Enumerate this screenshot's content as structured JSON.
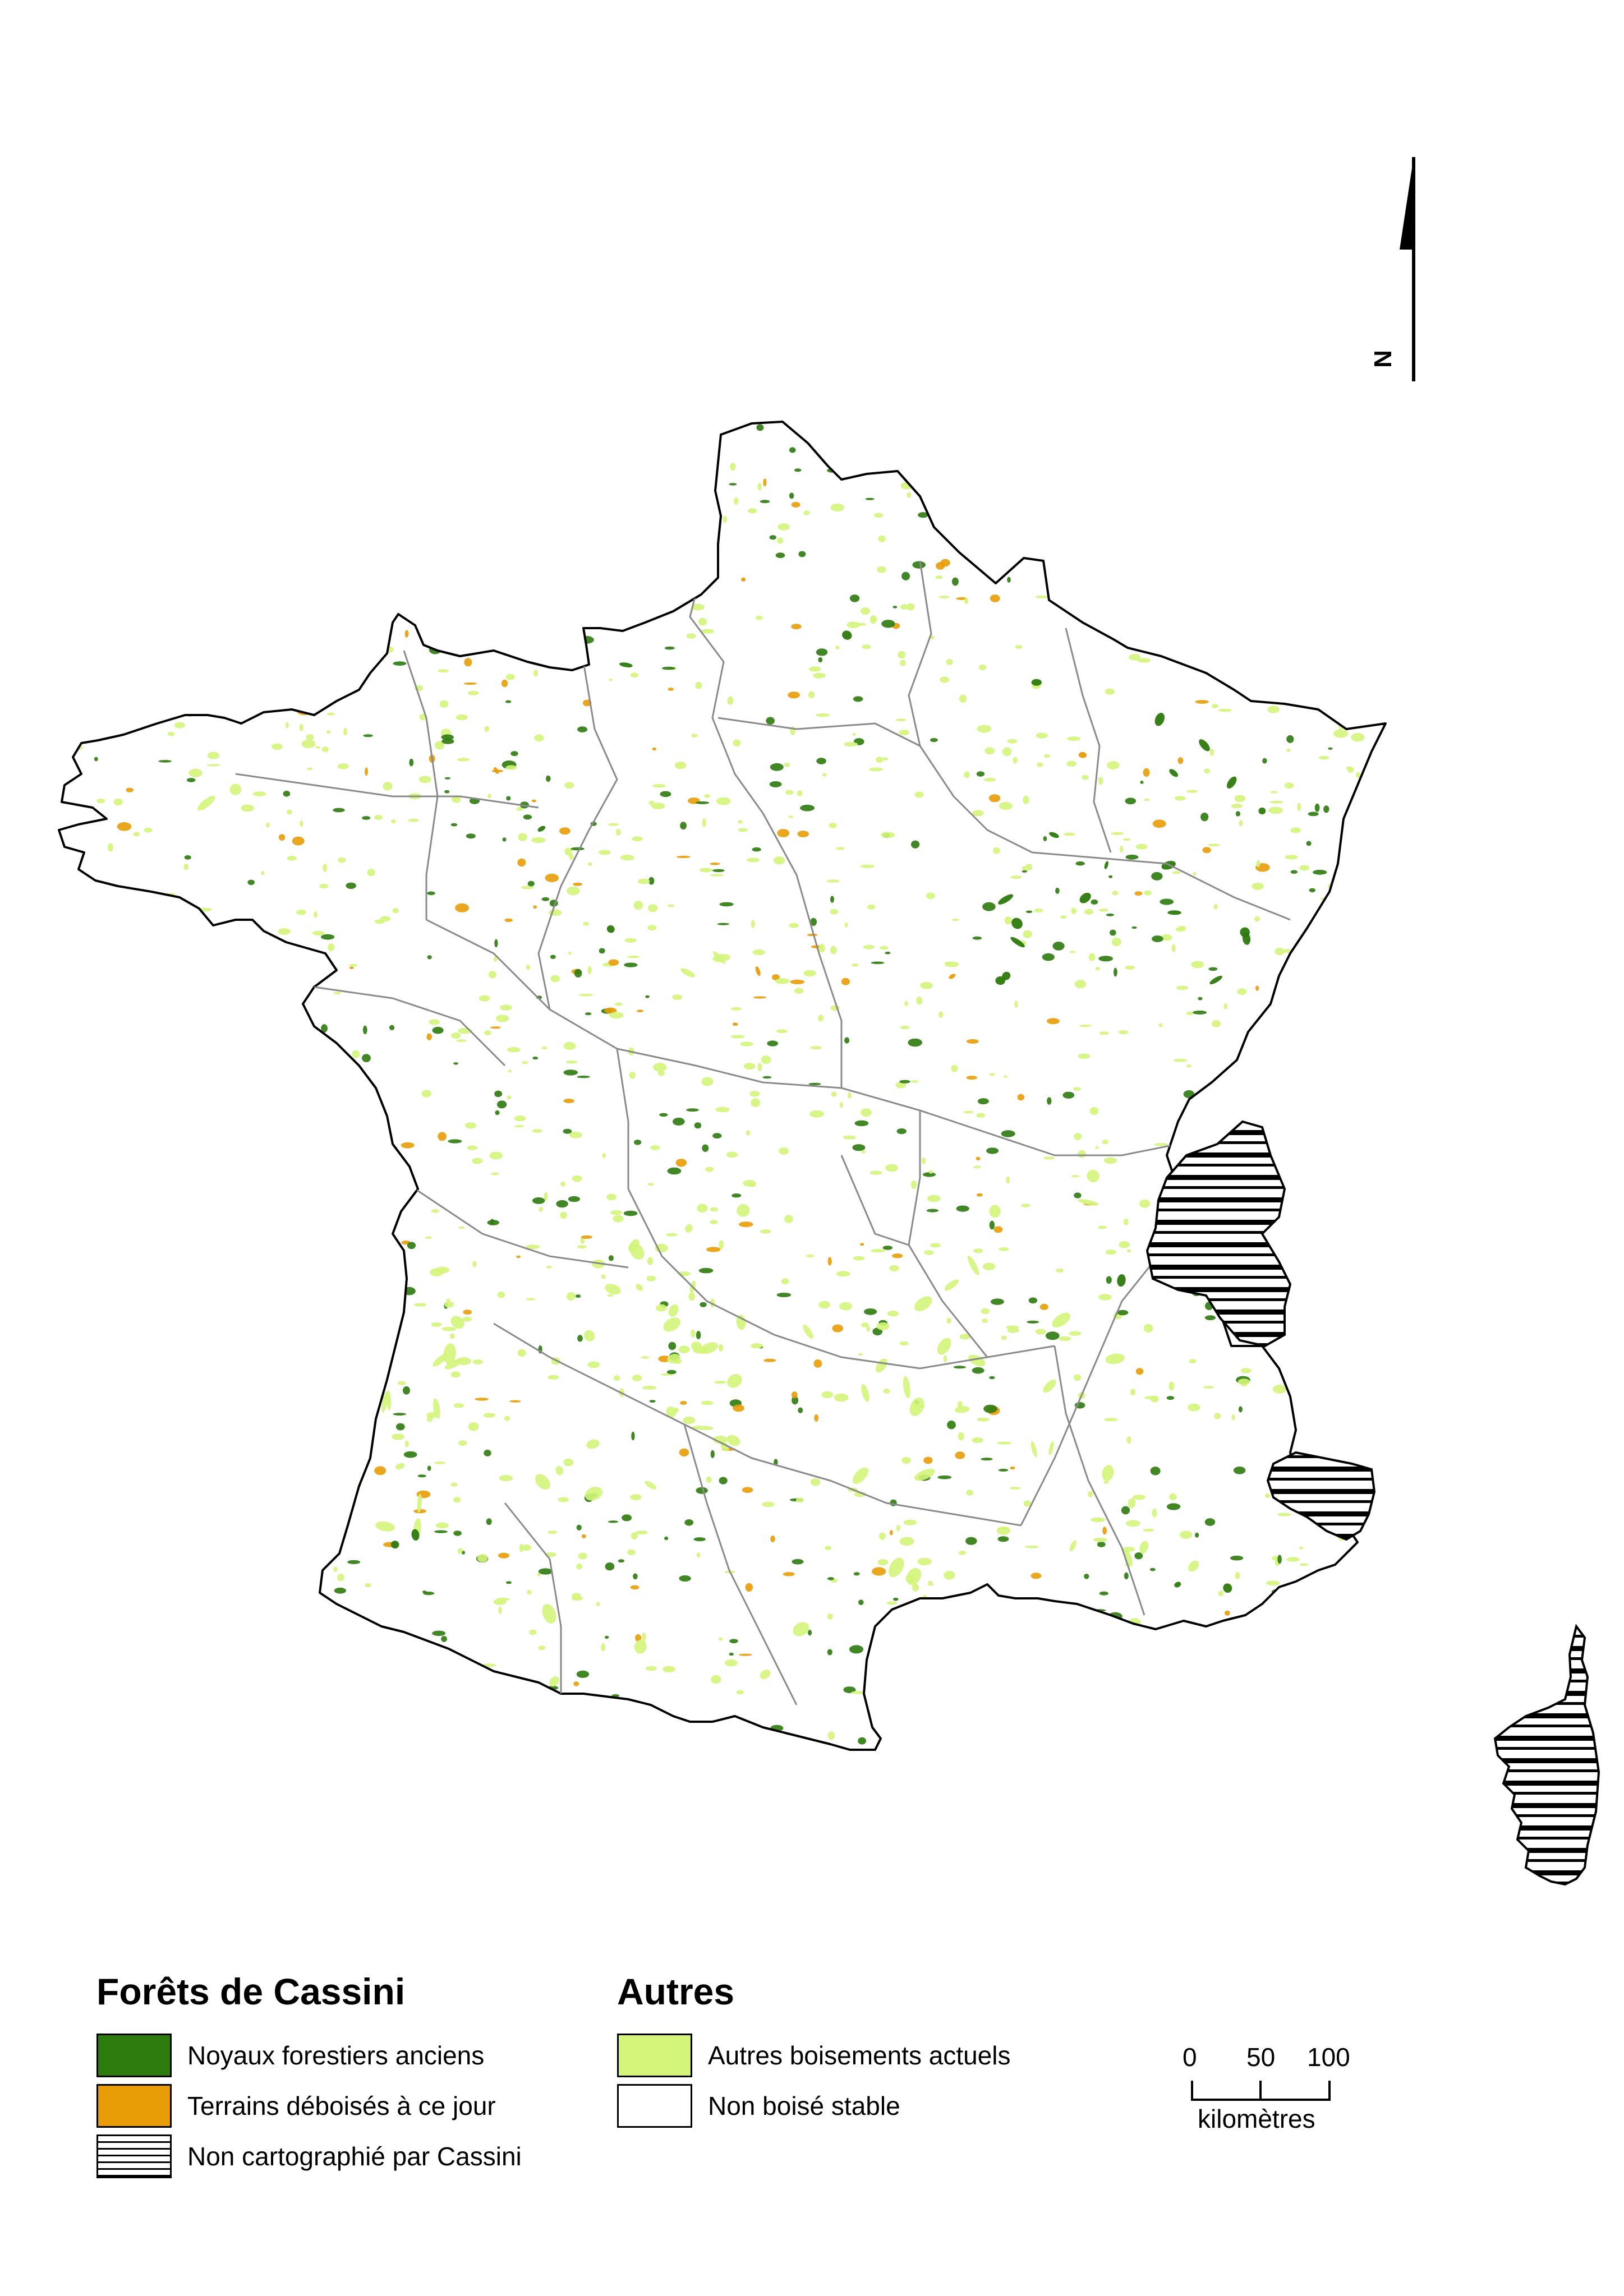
{
  "legend": {
    "cassini": {
      "title": "Forêts de Cassini",
      "items": [
        {
          "label": "Noyaux forestiers anciens",
          "color": "#2d7a0d"
        },
        {
          "label": "Terrains déboisés à ce jour",
          "color": "#e89c06"
        },
        {
          "label": "Non cartographié par Cassini",
          "pattern": "horizontal-hatch"
        }
      ]
    },
    "autres": {
      "title": "Autres",
      "items": [
        {
          "label": "Autres boisements actuels",
          "color": "#d4f57a"
        },
        {
          "label": "Non boisé stable",
          "color": "#ffffff"
        }
      ]
    }
  },
  "north_arrow": {
    "label": "N"
  },
  "scale_bar": {
    "ticks": [
      "0",
      "50",
      "100"
    ],
    "unit": "kilomètres"
  },
  "map": {
    "features": [
      "France mainland",
      "Corsica",
      "regional boundaries"
    ],
    "colors": {
      "ancient_forest": "#2d7a0d",
      "deforested": "#e89c06",
      "current_woodland": "#d4f57a",
      "boundary": "#000000",
      "internal_boundary": "#8a8a8a"
    }
  }
}
